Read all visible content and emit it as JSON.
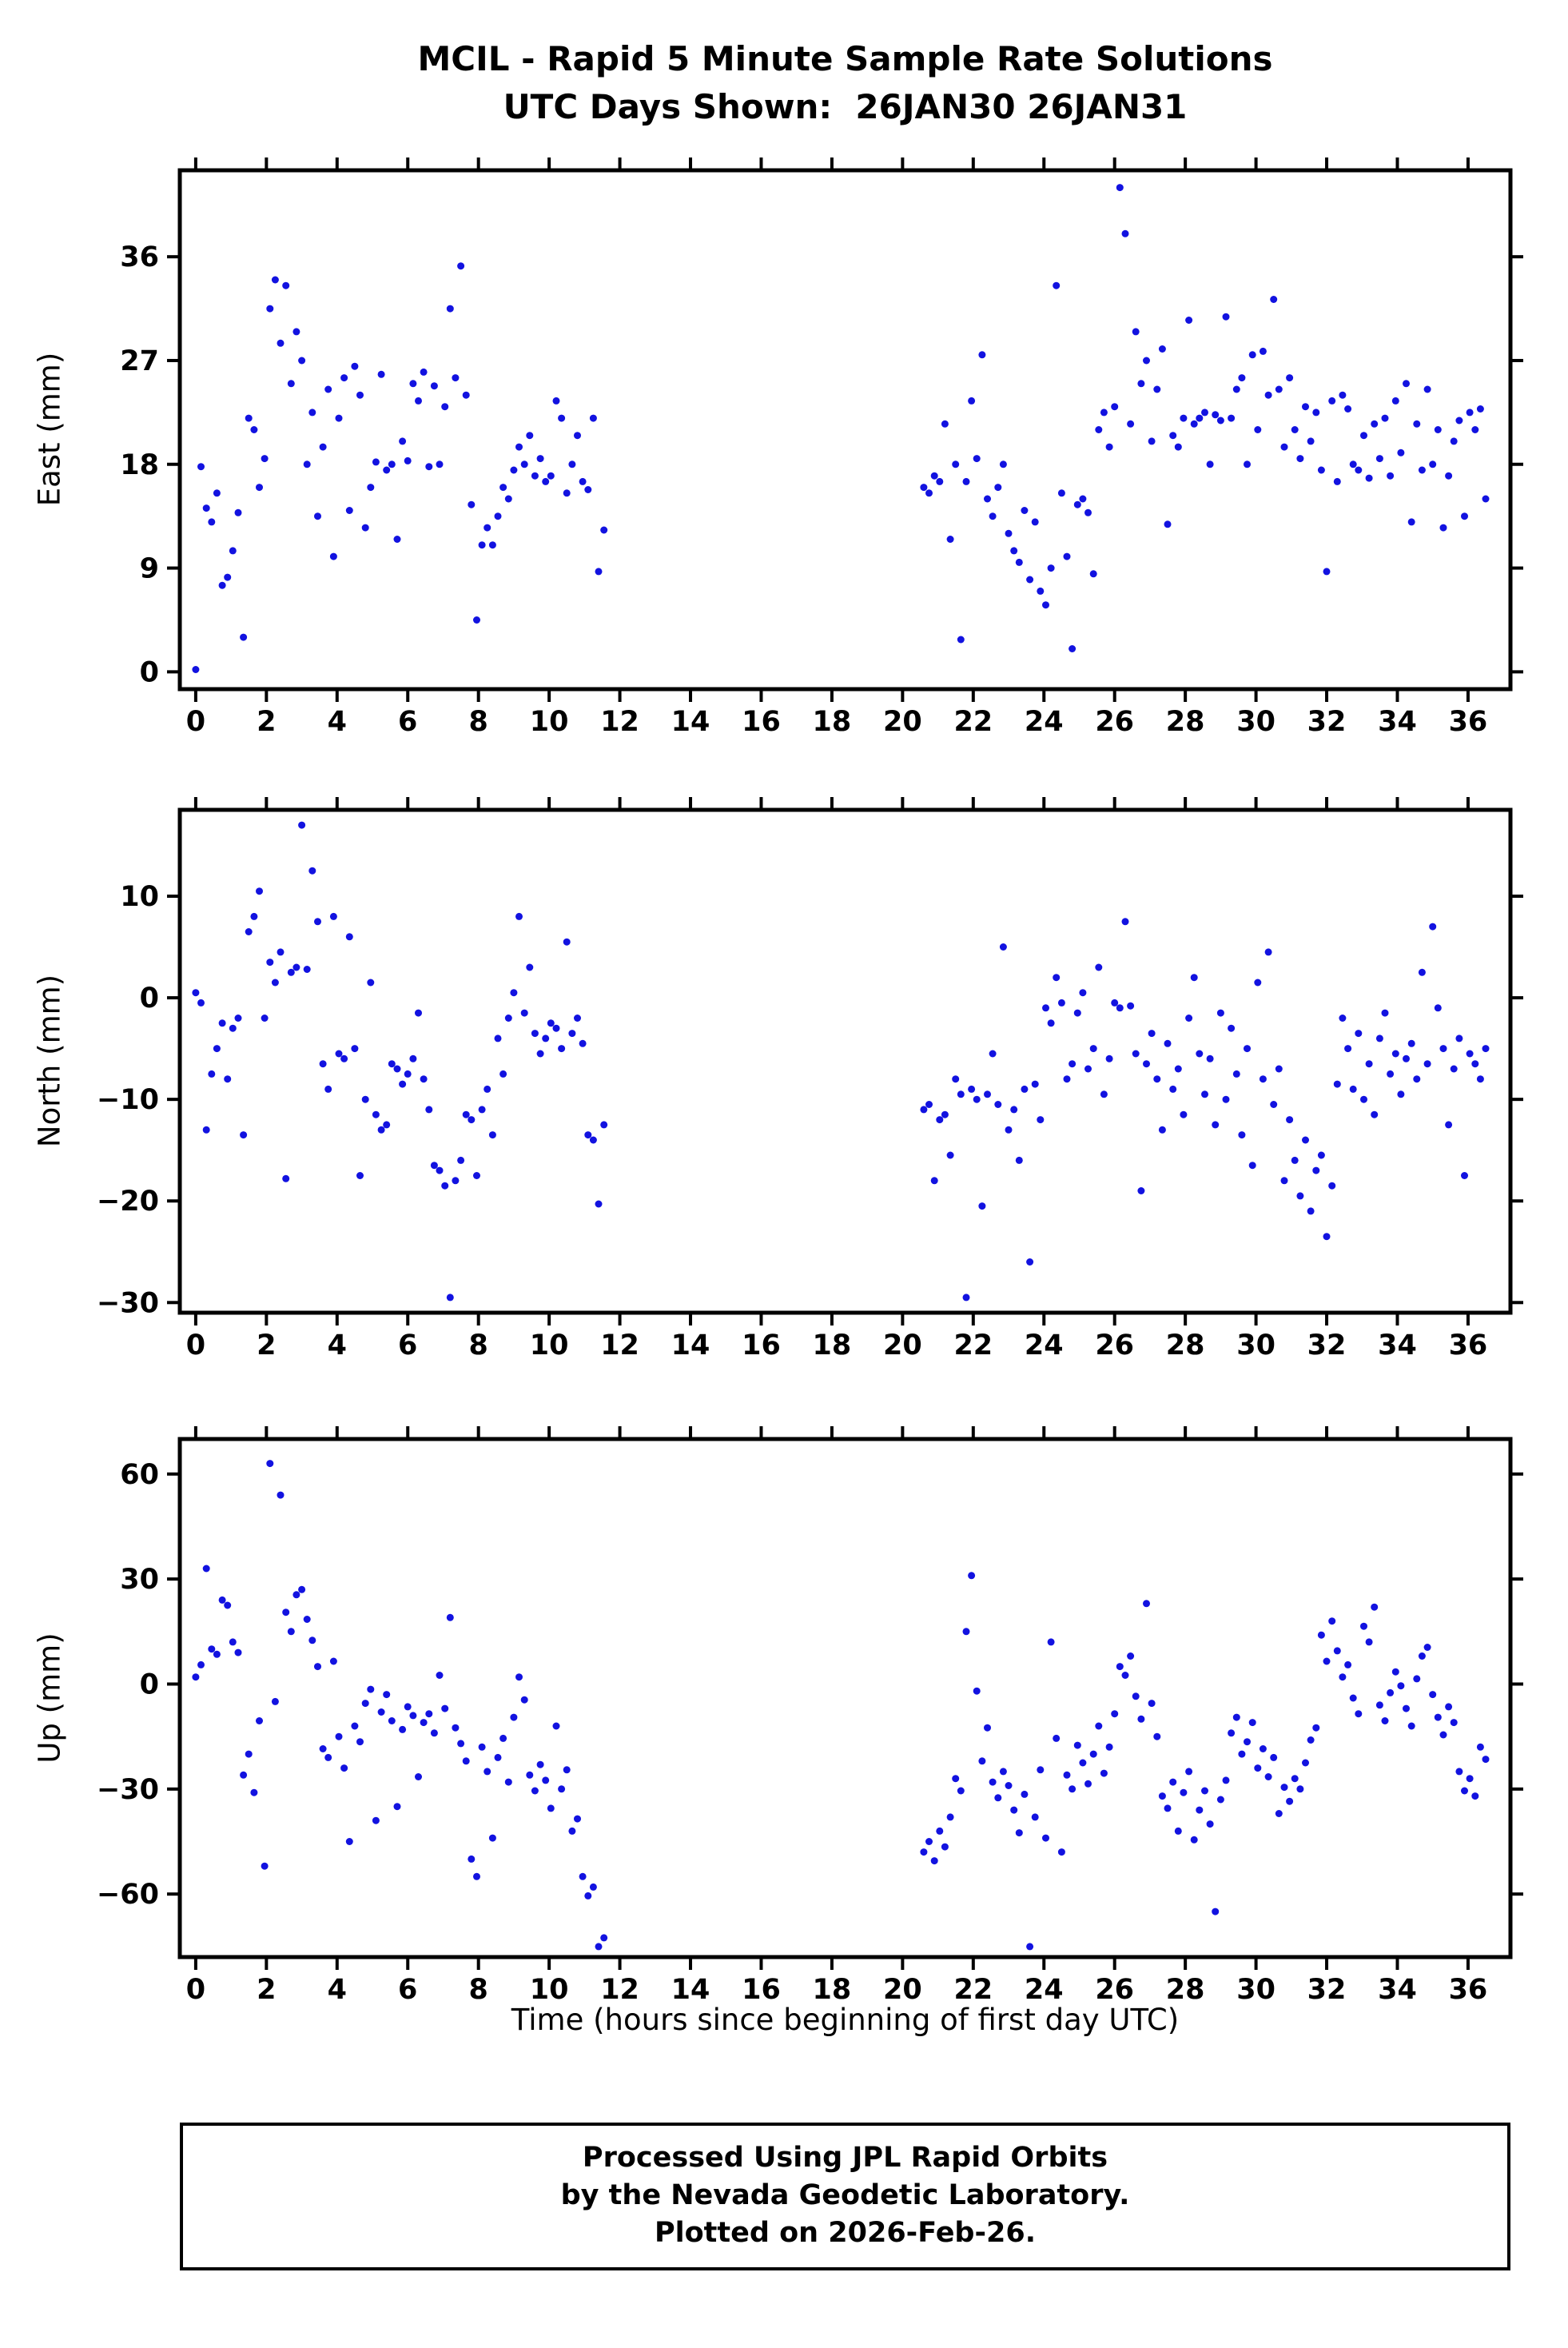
{
  "title": {
    "line1": "MCIL - Rapid 5 Minute Sample Rate Solutions",
    "line2": "UTC Days Shown:  26JAN30 26JAN31"
  },
  "x_axis_title": "Time (hours since beginning of first day UTC)",
  "footer": {
    "line1": "Processed Using JPL Rapid Orbits",
    "line2": "by the Nevada Geodetic Laboratory.",
    "line3": "Plotted on 2026-Feb-26."
  },
  "point_color": "#1212e0",
  "frame_color": "#000000",
  "chart_data": [
    {
      "type": "scatter",
      "name": "east",
      "ylabel": "East (mm)",
      "ylim": [
        -1.5,
        43.5
      ],
      "yticks": [
        0,
        9,
        18,
        27,
        36
      ],
      "xlim": [
        -0.45,
        37.2
      ],
      "xticks": [
        0,
        2,
        4,
        6,
        8,
        10,
        12,
        14,
        16,
        18,
        20,
        22,
        24,
        26,
        28,
        30,
        32,
        34,
        36
      ],
      "grid": false,
      "legend": "none",
      "segments": [
        {
          "x_start": 0.0,
          "x_step": 0.15,
          "y": [
            0.2,
            17.8,
            14.2,
            13,
            15.5,
            7.5,
            8.2,
            10.5,
            13.8,
            3,
            22,
            21,
            16,
            18.5,
            31.5,
            34,
            28.5,
            33.5,
            25,
            29.5,
            27,
            18,
            22.5,
            13.5,
            19.5,
            24.5,
            10,
            22,
            25.5,
            14,
            26.5,
            24,
            12.5,
            16,
            18.2,
            25.8,
            17.5,
            18,
            11.5,
            20,
            18.3,
            25,
            23.5,
            26,
            17.8,
            24.8,
            18,
            23,
            31.5,
            25.5,
            35.2,
            24,
            14.5,
            4.5,
            11,
            12.5,
            11,
            13.5,
            16,
            15,
            17.5,
            19.5,
            18,
            20.5,
            17,
            18.5,
            16.5,
            17,
            23.5,
            22,
            15.5,
            18,
            20.5,
            16.5,
            15.8,
            22,
            8.7,
            12.3
          ]
        },
        {
          "x_start": 20.6,
          "x_step": 0.15,
          "y": [
            16,
            15.5,
            17,
            16.5,
            21.5,
            11.5,
            18,
            2.8,
            16.5,
            23.5,
            18.5,
            27.5,
            15,
            13.5,
            16,
            18,
            12,
            10.5,
            9.5,
            14,
            8,
            13,
            7,
            5.8,
            9,
            33.5,
            15.5,
            10,
            2,
            14.5,
            15,
            13.8,
            8.5,
            21,
            22.5,
            19.5,
            23,
            42,
            38,
            21.5,
            29.5,
            25,
            27,
            20,
            24.5,
            28,
            12.8,
            20.5,
            19.5,
            22,
            30.5,
            21.5,
            22,
            22.5,
            18,
            22.3,
            21.8,
            30.8,
            22,
            24.5,
            25.5,
            18,
            27.5,
            21,
            27.8,
            24,
            32.3,
            24.5,
            19.5,
            25.5,
            21,
            18.5,
            23,
            20,
            22.5,
            17.5,
            8.7,
            23.5,
            16.5,
            24,
            22.8,
            18,
            17.5,
            20.5,
            16.8,
            21.5,
            18.5,
            22,
            17,
            23.5,
            19,
            25,
            13,
            21.5,
            17.5,
            24.5,
            18,
            21,
            12.5,
            17,
            20,
            21.8,
            13.5,
            22.5,
            21,
            22.8,
            15
          ]
        }
      ]
    },
    {
      "type": "scatter",
      "name": "north",
      "ylabel": "North (mm)",
      "ylim": [
        -31,
        18.5
      ],
      "yticks": [
        -30,
        -20,
        -10,
        0,
        10
      ],
      "xlim": [
        -0.45,
        37.2
      ],
      "xticks": [
        0,
        2,
        4,
        6,
        8,
        10,
        12,
        14,
        16,
        18,
        20,
        22,
        24,
        26,
        28,
        30,
        32,
        34,
        36
      ],
      "grid": false,
      "legend": "none",
      "segments": [
        {
          "x_start": 0.0,
          "x_step": 0.15,
          "y": [
            0.5,
            -0.5,
            -13,
            -7.5,
            -5,
            -2.5,
            -8,
            -3,
            -2,
            -13.5,
            6.5,
            8,
            10.5,
            -2,
            3.5,
            1.5,
            4.5,
            -17.8,
            2.5,
            3,
            17,
            2.8,
            12.5,
            7.5,
            -6.5,
            -9,
            8,
            -5.5,
            -6,
            6,
            -5,
            -17.5,
            -10,
            1.5,
            -11.5,
            -13,
            -12.5,
            -6.5,
            -7,
            -8.5,
            -7.5,
            -6,
            -1.5,
            -8,
            -11,
            -16.5,
            -17,
            -18.5,
            -29.5,
            -18,
            -16,
            -11.5,
            -12,
            -17.5,
            -11,
            -9,
            -13.5,
            -4,
            -7.5,
            -2,
            0.5,
            8,
            -1.5,
            3,
            -3.5,
            -5.5,
            -4,
            -2.5,
            -3,
            -5,
            5.5,
            -3.5,
            -2,
            -4.5,
            -13.5,
            -14,
            -20.3,
            -12.5
          ]
        },
        {
          "x_start": 20.6,
          "x_step": 0.15,
          "y": [
            -11,
            -10.5,
            -18,
            -12,
            -11.5,
            -15.5,
            -8,
            -9.5,
            -29.5,
            -9,
            -10,
            -20.5,
            -9.5,
            -5.5,
            -10.5,
            5,
            -13,
            -11,
            -16,
            -9,
            -26,
            -8.5,
            -12,
            -1,
            -2.5,
            2,
            -0.5,
            -8,
            -6.5,
            -1.5,
            0.5,
            -7,
            -5,
            3,
            -9.5,
            -6,
            -0.5,
            -1,
            7.5,
            -0.8,
            -5.5,
            -19,
            -6.5,
            -3.5,
            -8,
            -13,
            -4.5,
            -9,
            -7,
            -11.5,
            -2,
            2,
            -5.5,
            -9.5,
            -6,
            -12.5,
            -1.5,
            -10,
            -3,
            -7.5,
            -13.5,
            -5,
            -16.5,
            1.5,
            -8,
            4.5,
            -10.5,
            -7,
            -18,
            -12,
            -16,
            -19.5,
            -14,
            -21,
            -17,
            -15.5,
            -23.5,
            -18.5,
            -8.5,
            -2,
            -5,
            -9,
            -3.5,
            -10,
            -6.5,
            -11.5,
            -4,
            -1.5,
            -7.5,
            -5.5,
            -9.5,
            -6,
            -4.5,
            -8,
            2.5,
            -6.5,
            7,
            -1,
            -5,
            -12.5,
            -7,
            -4,
            -17.5,
            -5.5,
            -6.5,
            -8,
            -5
          ]
        }
      ]
    },
    {
      "type": "scatter",
      "name": "up",
      "ylabel": "Up (mm)",
      "ylim": [
        -78,
        70
      ],
      "yticks": [
        -60,
        -30,
        0,
        30,
        60
      ],
      "xlim": [
        -0.45,
        37.2
      ],
      "xticks": [
        0,
        2,
        4,
        6,
        8,
        10,
        12,
        14,
        16,
        18,
        20,
        22,
        24,
        26,
        28,
        30,
        32,
        34,
        36
      ],
      "grid": false,
      "legend": "none",
      "segments": [
        {
          "x_start": 0.0,
          "x_step": 0.15,
          "y": [
            2,
            5.5,
            33,
            10,
            8.5,
            24,
            22.5,
            12,
            9,
            -26,
            -20,
            -31,
            -10.5,
            -52,
            63,
            -5,
            54,
            20.5,
            15,
            25.5,
            27,
            18.5,
            12.5,
            5,
            -18.5,
            -21,
            6.5,
            -15,
            -24,
            -45,
            -12,
            -16.5,
            -5.5,
            -1.5,
            -39,
            -8,
            -3,
            -10.5,
            -35,
            -13,
            -6.5,
            -9,
            -26.5,
            -11,
            -8.5,
            -14,
            2.5,
            -7,
            19,
            -12.5,
            -17,
            -22,
            -50,
            -55,
            -18,
            -25,
            -44,
            -21,
            -15.5,
            -28,
            -9.5,
            2,
            -4.5,
            -26,
            -30.5,
            -23,
            -27.5,
            -35.5,
            -12,
            -30,
            -24.5,
            -42,
            -38.5,
            -55,
            -60.5,
            -58,
            -75,
            -72.5
          ]
        },
        {
          "x_start": 20.6,
          "x_step": 0.15,
          "y": [
            -48,
            -45,
            -50.5,
            -42,
            -46.5,
            -38,
            -27,
            -30.5,
            15,
            31,
            -2,
            -22,
            -12.5,
            -28,
            -32.5,
            -25,
            -29,
            -36,
            -42.5,
            -31.5,
            -75,
            -38,
            -24.5,
            -44,
            12,
            -15.5,
            -48,
            -26,
            -30,
            -17.5,
            -22.5,
            -28.5,
            -20,
            -12,
            -25.5,
            -18,
            -8.5,
            5,
            2.5,
            8,
            -3.5,
            -10,
            23,
            -5.5,
            -15,
            -32,
            -35.5,
            -28,
            -42,
            -31,
            -25,
            -44.5,
            -36,
            -30.5,
            -40,
            -65,
            -33,
            -27.5,
            -14,
            -9.5,
            -20,
            -16.5,
            -11,
            -24,
            -18.5,
            -26.5,
            -21,
            -37,
            -29.5,
            -33.5,
            -27,
            -30,
            -22.5,
            -16,
            -12.5,
            14,
            6.5,
            18,
            9.5,
            2,
            5.5,
            -4,
            -8.5,
            16.5,
            12,
            22,
            -6,
            -10.5,
            -2.5,
            3.5,
            -0.5,
            -7,
            -12,
            1.5,
            8,
            10.5,
            -3,
            -9.5,
            -14.5,
            -6.5,
            -11,
            -25,
            -30.5,
            -27,
            -32,
            -18,
            -21.5
          ]
        }
      ]
    }
  ]
}
